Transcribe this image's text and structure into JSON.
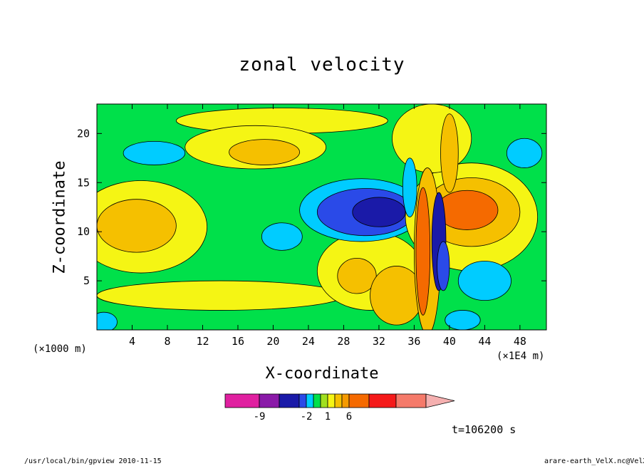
{
  "chart_data": {
    "type": "heatmap",
    "title": "zonal velocity",
    "xlabel": "X-coordinate",
    "ylabel": "Z-coordinate",
    "x_unit_left": "(×1000 m)",
    "x_unit_right": "(×1E4 m)",
    "xlim": [
      0,
      51
    ],
    "ylim": [
      0,
      23
    ],
    "x_ticks": [
      4,
      8,
      12,
      16,
      20,
      24,
      28,
      32,
      36,
      40,
      44,
      48
    ],
    "y_ticks": [
      5,
      10,
      15,
      20
    ],
    "colorbar": {
      "levels": [
        -12,
        -9,
        -6,
        -3,
        -2,
        -1,
        0,
        1,
        2,
        3,
        6,
        9,
        12
      ],
      "colors": [
        "#e020a0",
        "#8a1aa8",
        "#1a1aa8",
        "#2a4ae8",
        "#00ccff",
        "#00e04a",
        "#a0e020",
        "#f5f514",
        "#f5c000",
        "#f59a00",
        "#f56a00",
        "#f51a1a",
        "#f57a6a",
        "#f5b0b0"
      ],
      "tick_labels": [
        {
          "label": "-9",
          "value": -9
        },
        {
          "label": "-2",
          "value": -2
        },
        {
          "label": "1",
          "value": 1
        },
        {
          "label": "6",
          "value": 6
        }
      ]
    },
    "background_level": "#00e04a",
    "regions": [
      {
        "color": "#f5f514",
        "cx": 14.0,
        "cy": 3.5,
        "rx": 14.0,
        "ry": 1.5
      },
      {
        "color": "#f5f514",
        "cx": 21.0,
        "cy": 21.3,
        "rx": 12.0,
        "ry": 1.3
      },
      {
        "color": "#f5f514",
        "cx": 18.0,
        "cy": 18.6,
        "rx": 8.0,
        "ry": 2.2
      },
      {
        "color": "#f5f514",
        "cx": 5.0,
        "cy": 10.5,
        "rx": 7.5,
        "ry": 4.7
      },
      {
        "color": "#f5c000",
        "cx": 4.5,
        "cy": 10.6,
        "rx": 4.5,
        "ry": 2.7
      },
      {
        "color": "#f5c000",
        "cx": 19.0,
        "cy": 18.1,
        "rx": 4.0,
        "ry": 1.3
      },
      {
        "color": "#00ccff",
        "cx": 6.5,
        "cy": 18.0,
        "rx": 3.5,
        "ry": 1.2
      },
      {
        "color": "#00ccff",
        "cx": 21.0,
        "cy": 9.5,
        "rx": 2.3,
        "ry": 1.4
      },
      {
        "color": "#00ccff",
        "cx": 0.8,
        "cy": 0.8,
        "rx": 1.5,
        "ry": 1.0
      },
      {
        "color": "#f5f514",
        "cx": 31.0,
        "cy": 6.0,
        "rx": 6.0,
        "ry": 4.0
      },
      {
        "color": "#f5c000",
        "cx": 29.5,
        "cy": 5.5,
        "rx": 2.2,
        "ry": 1.8
      },
      {
        "color": "#00ccff",
        "cx": 30.0,
        "cy": 12.2,
        "rx": 7.0,
        "ry": 3.2
      },
      {
        "color": "#2a4ae8",
        "cx": 30.5,
        "cy": 12.0,
        "rx": 5.5,
        "ry": 2.4
      },
      {
        "color": "#1a1aa8",
        "cx": 32.0,
        "cy": 12.0,
        "rx": 3.0,
        "ry": 1.5
      },
      {
        "color": "#f5f514",
        "cx": 42.5,
        "cy": 11.5,
        "rx": 7.5,
        "ry": 5.5
      },
      {
        "color": "#f5c000",
        "cx": 42.5,
        "cy": 12.0,
        "rx": 5.5,
        "ry": 3.5
      },
      {
        "color": "#f56a00",
        "cx": 42.0,
        "cy": 12.2,
        "rx": 3.5,
        "ry": 2.0
      },
      {
        "color": "#f5c000",
        "cx": 34.0,
        "cy": 3.5,
        "rx": 3.0,
        "ry": 3.0
      },
      {
        "color": "#00ccff",
        "cx": 44.0,
        "cy": 5.0,
        "rx": 3.0,
        "ry": 2.0
      },
      {
        "color": "#00ccff",
        "cx": 41.5,
        "cy": 1.0,
        "rx": 2.0,
        "ry": 1.0
      },
      {
        "color": "#00ccff",
        "cx": 48.5,
        "cy": 18.0,
        "rx": 2.0,
        "ry": 1.5
      },
      {
        "color": "#f5f514",
        "cx": 38.0,
        "cy": 19.5,
        "rx": 4.5,
        "ry": 3.5
      },
      {
        "color": "#f5c000",
        "cx": 37.5,
        "cy": 8.0,
        "rx": 1.5,
        "ry": 8.5
      },
      {
        "color": "#f56a00",
        "cx": 37.0,
        "cy": 8.0,
        "rx": 0.8,
        "ry": 6.5
      },
      {
        "color": "#1a1aa8",
        "cx": 38.8,
        "cy": 9.0,
        "rx": 0.8,
        "ry": 5.0
      },
      {
        "color": "#2a4ae8",
        "cx": 39.3,
        "cy": 6.5,
        "rx": 0.7,
        "ry": 2.5
      },
      {
        "color": "#f5c000",
        "cx": 40.0,
        "cy": 18.0,
        "rx": 1.0,
        "ry": 4.0
      },
      {
        "color": "#00ccff",
        "cx": 35.5,
        "cy": 14.5,
        "rx": 0.8,
        "ry": 3.0
      }
    ]
  },
  "time_label": "t=106200 s",
  "footer_left": "/usr/local/bin/gpview  2010-11-15",
  "footer_right": "arare-earth_VelX.nc@VelX"
}
